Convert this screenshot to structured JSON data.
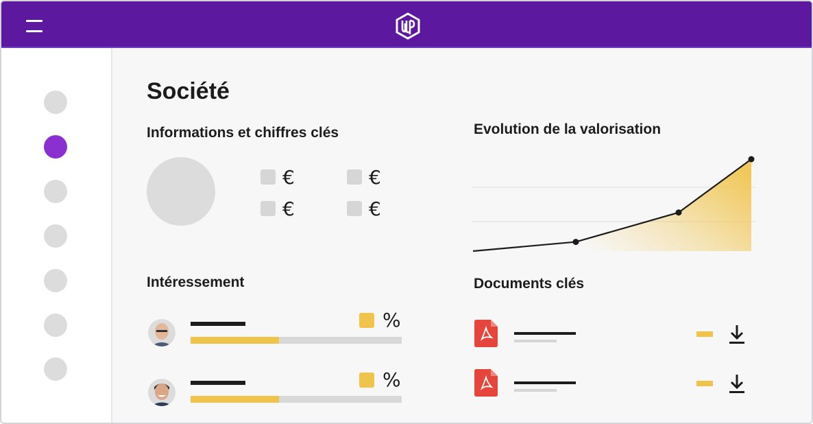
{
  "app": {
    "logo_name": "up-logo",
    "accent": "#5d18a0",
    "active_nav_color": "#8a2fd0",
    "highlight_color": "#f0c34a"
  },
  "sidebar": {
    "items": [
      {
        "active": false
      },
      {
        "active": true
      },
      {
        "active": false
      },
      {
        "active": false
      },
      {
        "active": false
      },
      {
        "active": false
      },
      {
        "active": false
      }
    ]
  },
  "page": {
    "title": "Société"
  },
  "info": {
    "title": "Informations et chiffres clés",
    "kpis": [
      {
        "symbol": "€"
      },
      {
        "symbol": "€"
      },
      {
        "symbol": "€"
      },
      {
        "symbol": "€"
      }
    ]
  },
  "valuation": {
    "title": "Evolution de la valorisation"
  },
  "chart_data": {
    "type": "line",
    "title": "Evolution de la valorisation",
    "xlabel": "",
    "ylabel": "",
    "x": [
      0,
      1,
      2,
      3
    ],
    "series": [
      {
        "values": [
          0,
          0.1,
          0.42,
          1.0
        ]
      }
    ],
    "grid": true,
    "markers": [
      1,
      2,
      3
    ],
    "fill_under_last_segments": true,
    "colors": {
      "line": "#1c1c1c",
      "fill": "#f0c34a"
    }
  },
  "interessement": {
    "title": "Intéressement",
    "rows": [
      {
        "avatar": "bald-man-avatar",
        "progress": 0.42,
        "symbol": "%"
      },
      {
        "avatar": "smiling-man-avatar",
        "progress": 0.42,
        "symbol": "%"
      }
    ]
  },
  "documents": {
    "title": "Documents clés",
    "items": [
      {
        "icon": "pdf-icon",
        "action": "download-icon"
      },
      {
        "icon": "pdf-icon",
        "action": "download-icon"
      }
    ]
  }
}
